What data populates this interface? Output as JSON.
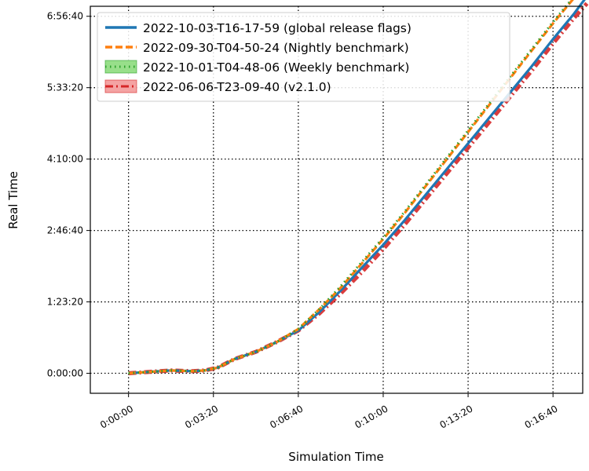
{
  "chart_data": {
    "type": "line",
    "xlabel": "Simulation Time",
    "ylabel": "Real Time",
    "x_unit": "seconds",
    "y_unit": "seconds",
    "xlim": [
      -90,
      1070
    ],
    "ylim": [
      -1400,
      25700
    ],
    "grid": true,
    "grid_style": "dotted",
    "legend_position": "top-left",
    "x_ticks": [
      {
        "value": 0,
        "label": "0:00:00"
      },
      {
        "value": 200,
        "label": "0:03:20"
      },
      {
        "value": 400,
        "label": "0:06:40"
      },
      {
        "value": 600,
        "label": "0:10:00"
      },
      {
        "value": 800,
        "label": "0:13:20"
      },
      {
        "value": 1000,
        "label": "0:16:40"
      }
    ],
    "y_ticks": [
      {
        "value": 0,
        "label": "0:00:00"
      },
      {
        "value": 5000,
        "label": "1:23:20"
      },
      {
        "value": 10000,
        "label": "2:46:40"
      },
      {
        "value": 15000,
        "label": "4:10:00"
      },
      {
        "value": 20000,
        "label": "5:33:20"
      },
      {
        "value": 25000,
        "label": "6:56:40"
      }
    ],
    "series": [
      {
        "name": "2022-10-03-T16-17-59 (global release flags)",
        "color": "#1f77b4",
        "style": "solid",
        "x": [
          0,
          50,
          100,
          150,
          180,
          210,
          250,
          300,
          350,
          400,
          450,
          500,
          550,
          600,
          650,
          700,
          750,
          800,
          850,
          900,
          950,
          1000,
          1050,
          1080
        ],
        "y": [
          0,
          100,
          200,
          150,
          200,
          400,
          1000,
          1500,
          2200,
          3000,
          4300,
          5800,
          7400,
          9000,
          10700,
          12500,
          14300,
          16100,
          17900,
          19700,
          21500,
          23400,
          25200,
          26400
        ]
      },
      {
        "name": "2022-09-30-T04-50-24 (Nightly benchmark)",
        "color": "#ff7f0e",
        "style": "dashed",
        "x": [
          0,
          50,
          100,
          150,
          180,
          210,
          250,
          300,
          350,
          400,
          450,
          500,
          550,
          600,
          650,
          700,
          750,
          800,
          850,
          900,
          950,
          1000,
          1050,
          1080
        ],
        "y": [
          0,
          100,
          200,
          150,
          200,
          400,
          1000,
          1500,
          2200,
          3100,
          4500,
          6000,
          7700,
          9400,
          11200,
          13100,
          15000,
          16900,
          18800,
          20700,
          22600,
          24500,
          26300,
          27400
        ]
      },
      {
        "name": "2022-10-01-T04-48-06 (Weekly benchmark)",
        "color": "#2ca02c",
        "style": "dotted",
        "x": [
          0,
          50,
          100,
          150,
          180,
          210,
          250,
          300,
          350,
          400,
          450,
          500,
          550,
          600,
          650,
          700,
          750,
          800,
          850,
          900,
          950,
          1000,
          1050,
          1080
        ],
        "y": [
          0,
          100,
          200,
          150,
          200,
          400,
          1000,
          1500,
          2200,
          3100,
          4500,
          6100,
          7800,
          9500,
          11300,
          13200,
          15100,
          17000,
          18900,
          20800,
          22700,
          24600,
          26400,
          27400
        ]
      },
      {
        "name": "2022-06-06-T23-09-40 (v2.1.0)",
        "color": "#d62728",
        "style": "dashdot",
        "x": [
          0,
          50,
          100,
          150,
          180,
          210,
          250,
          300,
          350,
          400,
          450,
          500,
          550,
          600,
          650,
          700,
          750,
          800,
          850,
          900,
          950,
          1000,
          1050,
          1080
        ],
        "y": [
          0,
          100,
          200,
          150,
          200,
          400,
          1000,
          1500,
          2200,
          3000,
          4200,
          5600,
          7100,
          8700,
          10400,
          12200,
          14000,
          15800,
          17600,
          19400,
          21200,
          23100,
          24900,
          25900
        ]
      }
    ]
  }
}
